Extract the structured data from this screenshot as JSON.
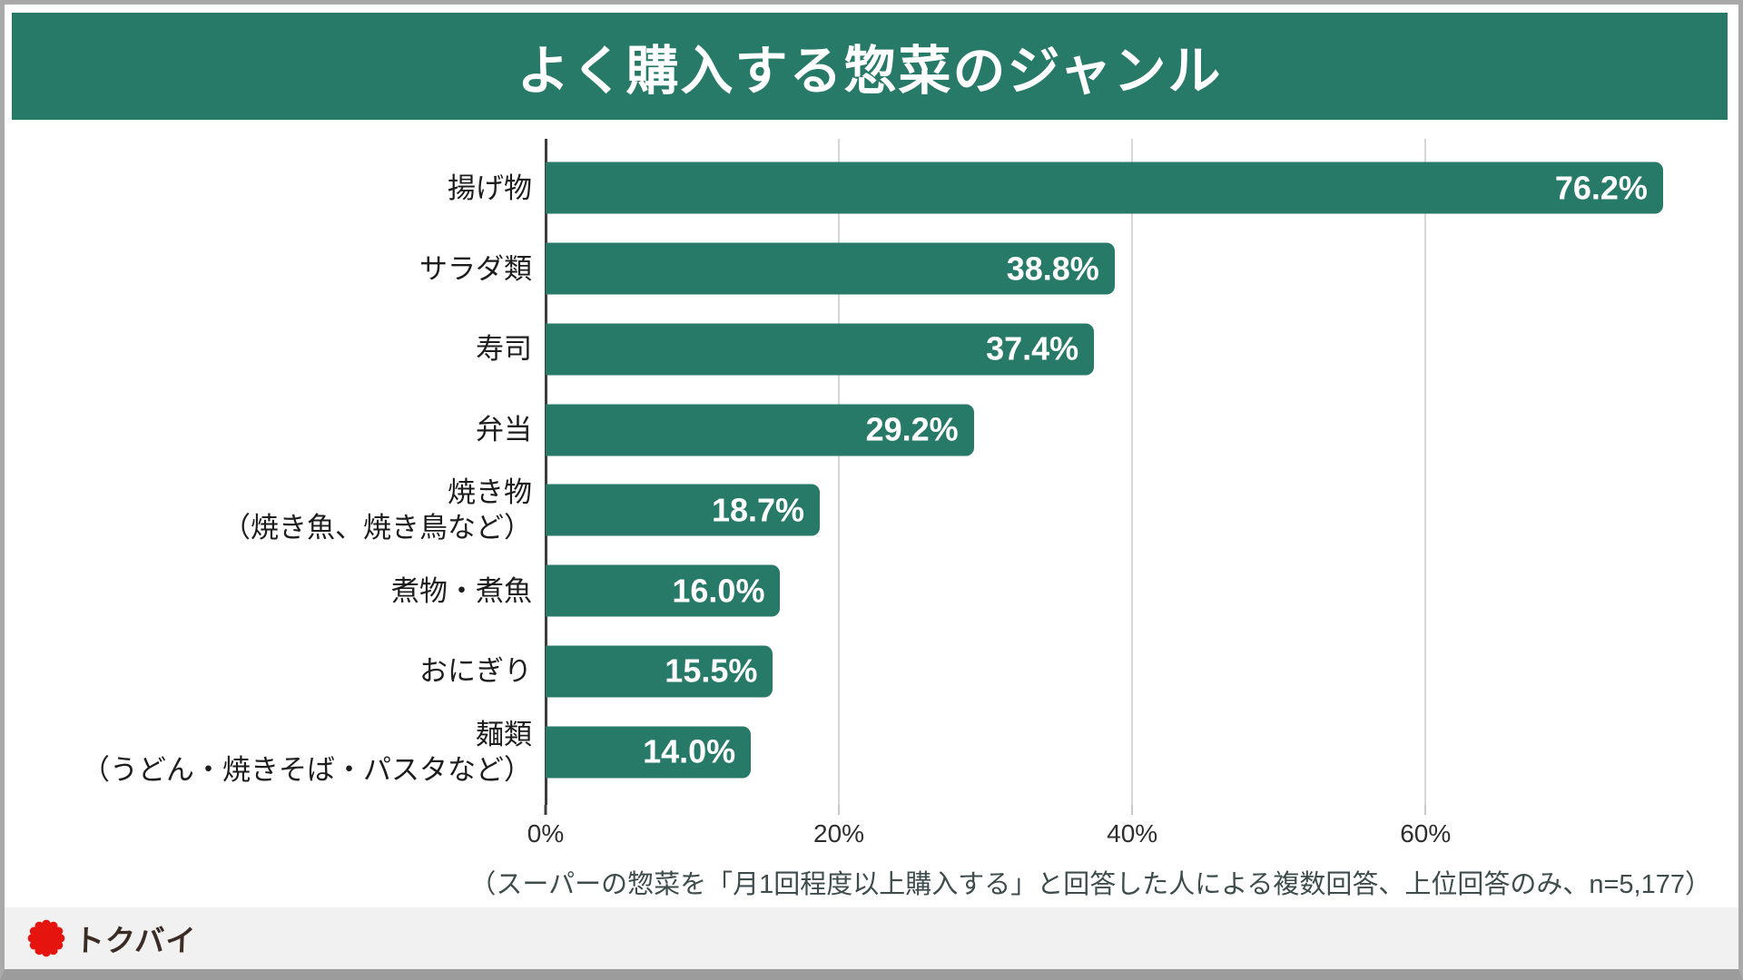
{
  "title": "よく購入する惣菜のジャンル",
  "colors": {
    "bar_green": "#287a68",
    "logo_red": "#e6140f",
    "logo_text_brown": "#3a2c25"
  },
  "chart_data": {
    "type": "bar",
    "orientation": "horizontal",
    "title": "よく購入する惣菜のジャンル",
    "xlabel": "",
    "ylabel": "",
    "xlim": [
      0,
      78
    ],
    "grid": "vertical-light-gray",
    "categories": [
      "揚げ物",
      "サラダ類",
      "寿司",
      "弁当",
      "焼き物（焼き魚、焼き鳥など）",
      "煮物・煮魚",
      "おにぎり",
      "麺類（うどん・焼きそば・パスタなど）"
    ],
    "values": [
      76.2,
      38.8,
      37.4,
      29.2,
      18.7,
      16.0,
      15.5,
      14.0
    ],
    "rows": [
      {
        "label": "揚げ物",
        "label2": "",
        "value": 76.2,
        "value_label": "76.2%"
      },
      {
        "label": "サラダ類",
        "label2": "",
        "value": 38.8,
        "value_label": "38.8%"
      },
      {
        "label": "寿司",
        "label2": "",
        "value": 37.4,
        "value_label": "37.4%"
      },
      {
        "label": "弁当",
        "label2": "",
        "value": 29.2,
        "value_label": "29.2%"
      },
      {
        "label": "焼き物",
        "label2": "（焼き魚、焼き鳥など）",
        "value": 18.7,
        "value_label": "18.7%"
      },
      {
        "label": "煮物・煮魚",
        "label2": "",
        "value": 16.0,
        "value_label": "16.0%"
      },
      {
        "label": "おにぎり",
        "label2": "",
        "value": 15.5,
        "value_label": "15.5%"
      },
      {
        "label": "麺類",
        "label2": "（うどん・焼きそば・パスタなど）",
        "value": 14.0,
        "value_label": "14.0%"
      }
    ],
    "x_ticks": [
      {
        "label": "0%",
        "value": 0
      },
      {
        "label": "20%",
        "value": 20
      },
      {
        "label": "40%",
        "value": 40
      },
      {
        "label": "60%",
        "value": 60
      }
    ]
  },
  "footnote": "（スーパーの惣菜を「月1回程度以上購入する」と回答した人による複数回答、上位回答のみ、n=5,177）",
  "footer": {
    "logo_text": "トクバイ"
  }
}
